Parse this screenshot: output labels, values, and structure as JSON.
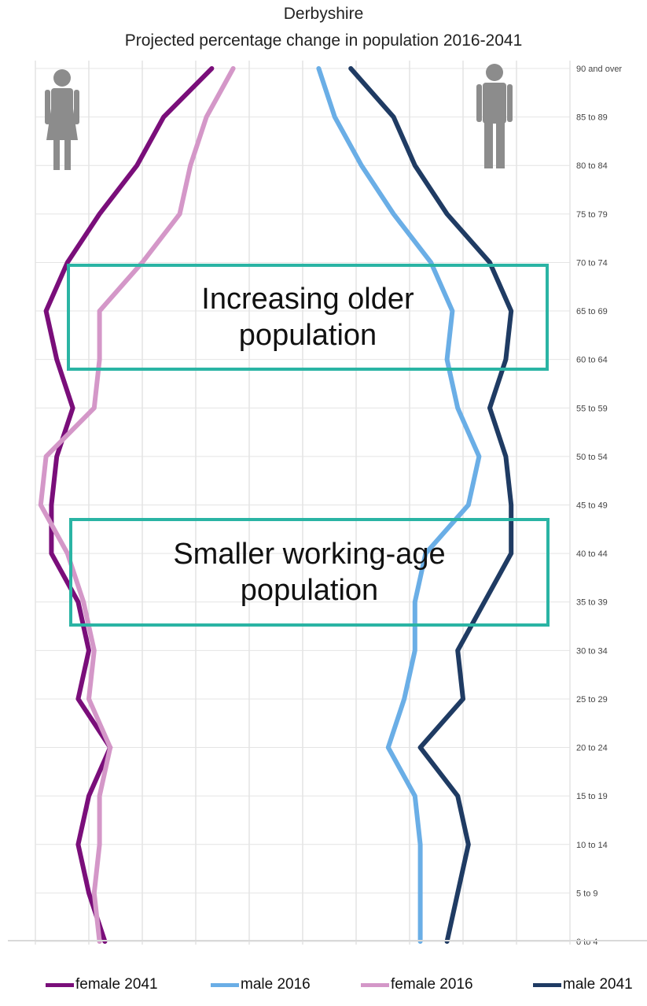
{
  "chart_data": {
    "type": "line",
    "title": "Derbyshire",
    "subtitle": "Projected percentage change in population 2016-2041",
    "orientation": "horizontal-pyramid",
    "categories": [
      "90 and over",
      "85 to 89",
      "80 to 84",
      "75 to 79",
      "70 to 74",
      "65 to 69",
      "60 to 64",
      "55 to 59",
      "50 to 54",
      "45 to 49",
      "40 to 44",
      "35 to 39",
      "30 to 34",
      "25 to 29",
      "20 to 24",
      "15 to 19",
      "10 to 14",
      "5 to 9",
      "0 to 4"
    ],
    "xlim": [
      -5,
      5
    ],
    "grid": true,
    "legend_position": "bottom",
    "series": [
      {
        "name": "female 2041",
        "color": "#7a0e7a",
        "values": [
          -1.7,
          -2.6,
          -3.1,
          -3.8,
          -4.4,
          -4.8,
          -4.6,
          -4.3,
          -4.6,
          -4.7,
          -4.7,
          -4.2,
          -4.0,
          -4.2,
          -3.6,
          -4.0,
          -4.2,
          -4.0,
          -3.7
        ]
      },
      {
        "name": "male 2016",
        "color": "#6aaee6",
        "values": [
          0.3,
          0.6,
          1.1,
          1.7,
          2.4,
          2.8,
          2.7,
          2.9,
          3.3,
          3.1,
          2.3,
          2.1,
          2.1,
          1.9,
          1.6,
          2.1,
          2.2,
          2.2,
          2.2
        ]
      },
      {
        "name": "female 2016",
        "color": "#d497c8",
        "values": [
          -1.3,
          -1.8,
          -2.1,
          -2.3,
          -3.0,
          -3.8,
          -3.8,
          -3.9,
          -4.8,
          -4.9,
          -4.4,
          -4.1,
          -3.9,
          -4.0,
          -3.6,
          -3.8,
          -3.8,
          -3.9,
          -3.8
        ]
      },
      {
        "name": "male 2041",
        "color": "#1f3b63",
        "values": [
          0.9,
          1.7,
          2.1,
          2.7,
          3.5,
          3.9,
          3.8,
          3.5,
          3.8,
          3.9,
          3.9,
          3.4,
          2.9,
          3.0,
          2.2,
          2.9,
          3.1,
          2.9,
          2.7
        ]
      }
    ],
    "annotations": [
      {
        "lines": [
          "Increasing older",
          "population"
        ]
      },
      {
        "lines": [
          "Smaller working-age",
          "population"
        ]
      }
    ]
  },
  "icons": {
    "female": "female-person-icon",
    "male": "male-person-icon"
  }
}
